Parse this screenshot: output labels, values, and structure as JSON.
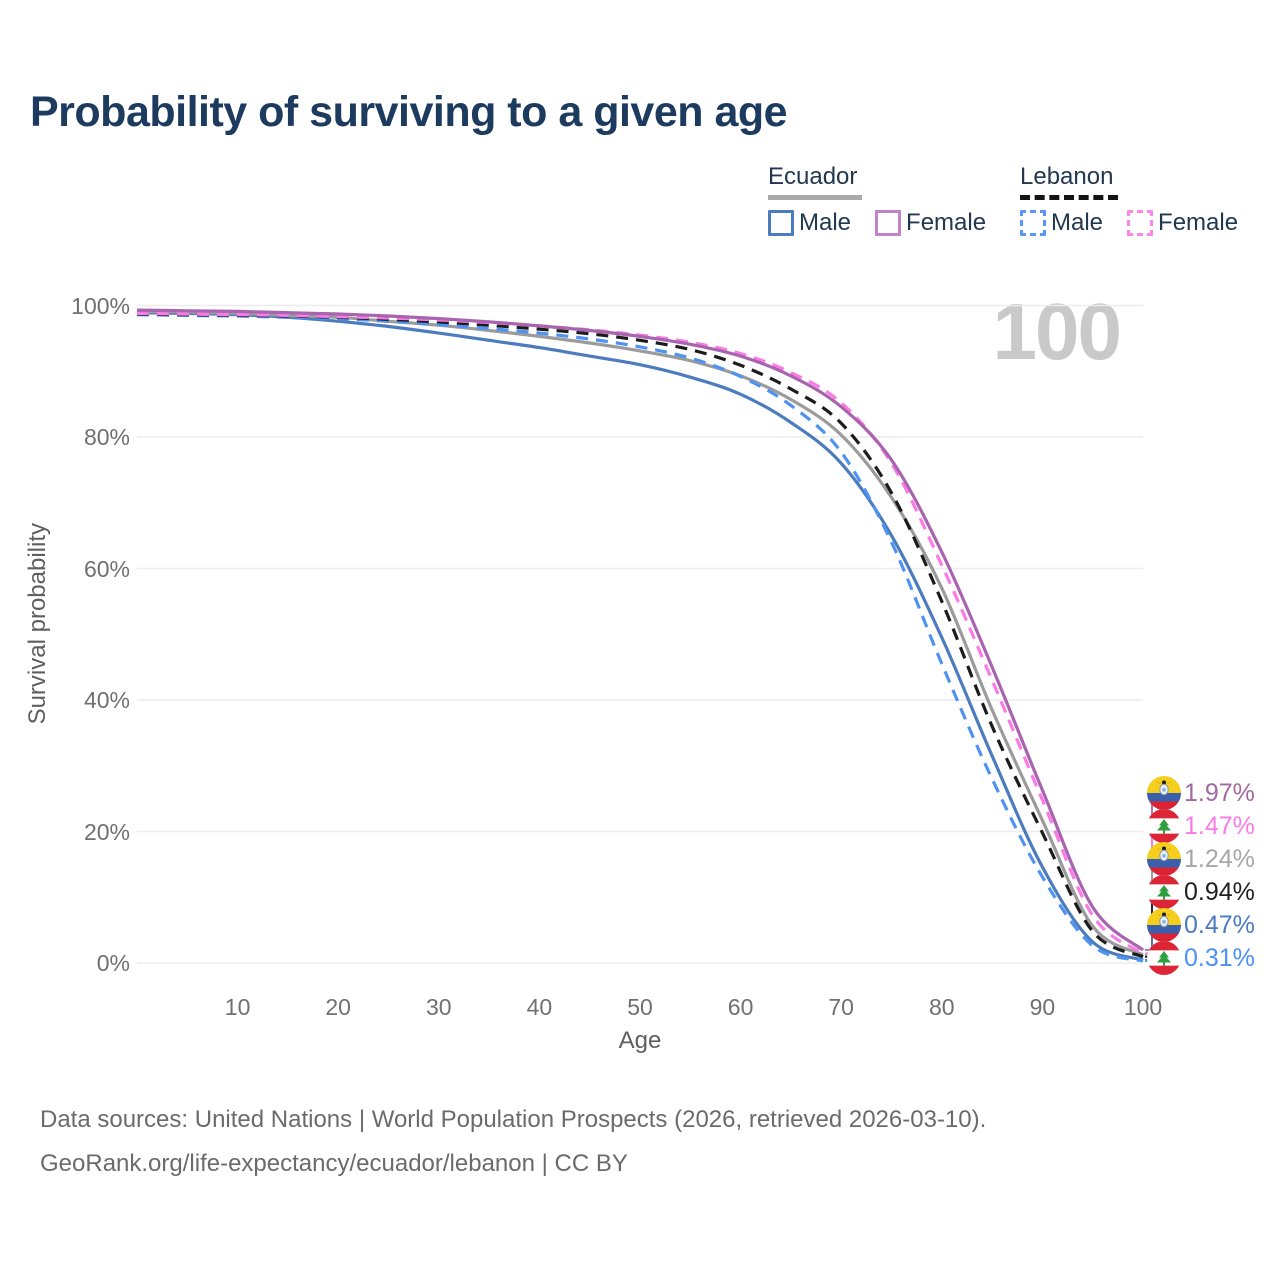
{
  "header": {
    "title": "Probability of surviving to a given age"
  },
  "legend": {
    "groups": [
      {
        "id": "ecuador",
        "label": "Ecuador",
        "line_style": "solid",
        "underline_color": "#a9a9a9",
        "items": [
          {
            "id": "ecuador-male",
            "label": "Male",
            "color": "#4d7cbe",
            "dashed": false
          },
          {
            "id": "ecuador-female",
            "label": "Female",
            "color": "#c183c5",
            "dashed": false
          }
        ]
      },
      {
        "id": "lebanon",
        "label": "Lebanon",
        "line_style": "dashed",
        "underline_color": "#141414",
        "items": [
          {
            "id": "lebanon-male",
            "label": "Male",
            "color": "#5b95f5",
            "dashed": true
          },
          {
            "id": "lebanon-female",
            "label": "Female",
            "color": "#fb86e9",
            "dashed": true
          }
        ]
      }
    ]
  },
  "chart_data": {
    "type": "line",
    "title": "Probability of surviving to a given age",
    "xlabel": "Age",
    "ylabel": "Survival probability",
    "xlim": [
      0,
      100
    ],
    "ylim": [
      0,
      100
    ],
    "x_ticks": [
      10,
      20,
      30,
      40,
      50,
      60,
      70,
      80,
      90,
      100
    ],
    "y_ticks": [
      0,
      20,
      40,
      60,
      80,
      100
    ],
    "y_tick_suffix": "%",
    "grid": "horizontal-only",
    "gridline_color": "#ececec",
    "age_counter": "100",
    "ages": [
      0,
      5,
      10,
      15,
      20,
      25,
      30,
      35,
      40,
      45,
      50,
      55,
      60,
      65,
      70,
      75,
      80,
      85,
      90,
      95,
      100
    ],
    "series": [
      {
        "id": "ecuador-female",
        "country": "Ecuador",
        "group": "Female",
        "style": "solid",
        "color": "#a864af",
        "label_color": "#a269a0",
        "flag": "ecuador",
        "end_label": "1.97%",
        "end_value": 1.97,
        "values": [
          99.3,
          99.2,
          99.1,
          98.9,
          98.7,
          98.4,
          98.0,
          97.5,
          96.9,
          96.2,
          95.3,
          94.1,
          92.3,
          89.3,
          84.6,
          76.5,
          62.5,
          45.0,
          26.3,
          8.5,
          1.97
        ]
      },
      {
        "id": "lebanon-female",
        "country": "Lebanon",
        "group": "Female",
        "style": "dashed",
        "color": "#fa7ae6",
        "label_color": "#fa7ae6",
        "flag": "lebanon",
        "end_label": "1.47%",
        "end_value": 1.47,
        "values": [
          98.8,
          98.7,
          98.6,
          98.5,
          98.3,
          98.1,
          97.8,
          97.4,
          96.9,
          96.3,
          95.5,
          94.4,
          92.7,
          89.8,
          85.2,
          76.0,
          60.5,
          43.0,
          24.8,
          7.2,
          1.47
        ]
      },
      {
        "id": "ecuador-total",
        "country": "Ecuador",
        "group": "All",
        "style": "solid",
        "color": "#9b9b9b",
        "label_color": "#a6a6a6",
        "flag": "ecuador",
        "end_label": "1.24%",
        "end_value": 1.24,
        "values": [
          99.1,
          99.0,
          98.8,
          98.5,
          98.2,
          97.6,
          97.0,
          96.2,
          95.3,
          94.3,
          93.1,
          91.6,
          89.3,
          85.7,
          80.3,
          70.8,
          57.0,
          38.5,
          21.7,
          5.6,
          1.24
        ]
      },
      {
        "id": "lebanon-total",
        "country": "Lebanon",
        "group": "All",
        "style": "dashed",
        "color": "#1c1c1c",
        "label_color": "#1f1f1f",
        "flag": "lebanon",
        "end_label": "0.94%",
        "end_value": 0.94,
        "values": [
          98.7,
          98.6,
          98.5,
          98.4,
          98.2,
          97.9,
          97.5,
          97.0,
          96.4,
          95.7,
          94.7,
          93.3,
          90.9,
          87.3,
          82.1,
          71.5,
          55.0,
          36.0,
          19.8,
          4.8,
          0.94
        ]
      },
      {
        "id": "ecuador-male",
        "country": "Ecuador",
        "group": "Male",
        "style": "solid",
        "color": "#4d7cbe",
        "label_color": "#4a7ac0",
        "flag": "ecuador",
        "end_label": "0.47%",
        "end_value": 0.47,
        "values": [
          98.9,
          98.8,
          98.6,
          98.2,
          97.6,
          96.8,
          95.8,
          94.7,
          93.6,
          92.3,
          91.0,
          89.1,
          86.5,
          82.2,
          76.0,
          65.0,
          49.5,
          31.5,
          14.6,
          3.2,
          0.47
        ]
      },
      {
        "id": "lebanon-male",
        "country": "Lebanon",
        "group": "Male",
        "style": "dashed",
        "color": "#4f93f2",
        "label_color": "#4b90f5",
        "flag": "lebanon",
        "end_label": "0.31%",
        "end_value": 0.31,
        "values": [
          98.6,
          98.5,
          98.4,
          98.2,
          98.0,
          97.6,
          97.1,
          96.5,
          95.8,
          94.9,
          93.7,
          92.0,
          89.2,
          84.8,
          77.7,
          64.0,
          45.5,
          28.0,
          13.1,
          2.6,
          0.31
        ]
      }
    ],
    "flag_colors": {
      "ecuador": {
        "yellow": "#f5ce1e",
        "blue": "#3a5fac",
        "red": "#db2433",
        "crest": "#e9eff6",
        "condor": "#1b1b1b"
      },
      "lebanon": {
        "red": "#dc2638",
        "white": "#ffffff",
        "cedar": "#2e9e3f"
      }
    }
  },
  "footer": {
    "line1": "Data sources: United Nations | World Population Prospects (2026, retrieved 2026-03-10).",
    "line2": "GeoRank.org/life-expectancy/ecuador/lebanon | CC BY"
  }
}
